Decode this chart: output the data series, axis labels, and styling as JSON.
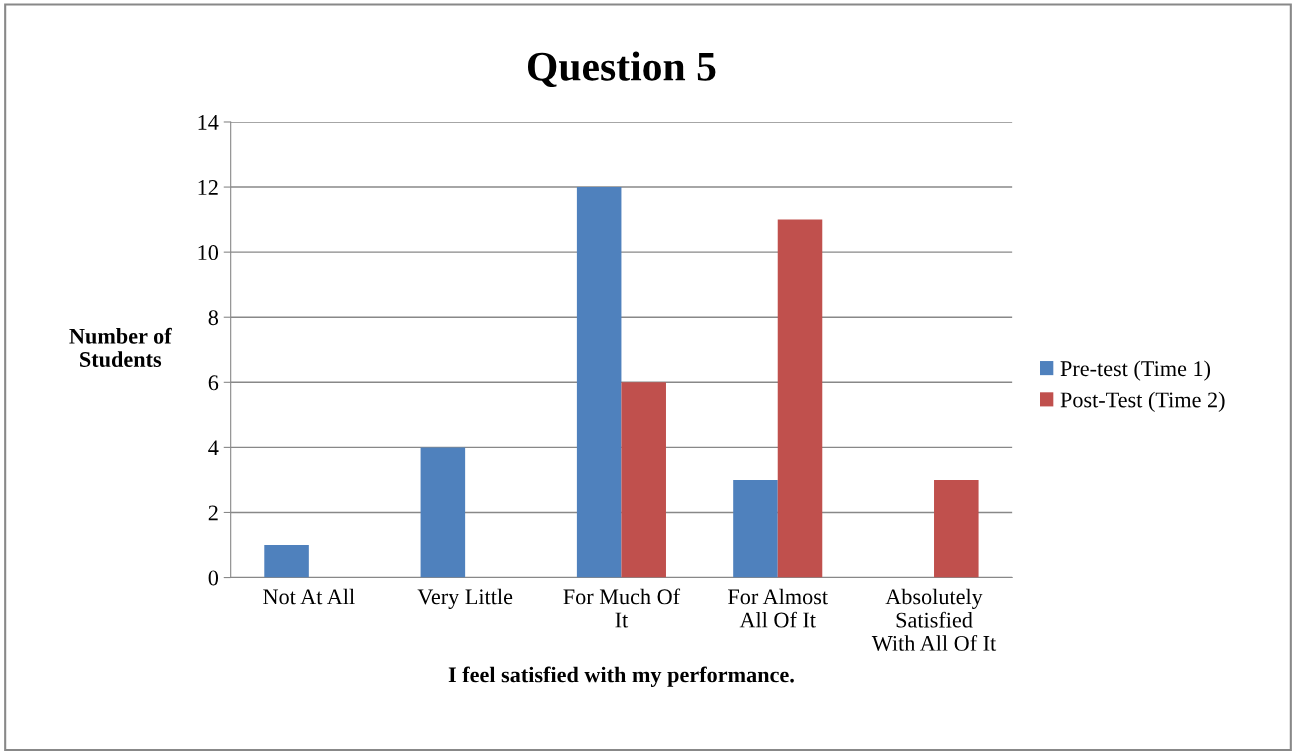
{
  "chart_data": {
    "type": "bar",
    "title": "Question 5",
    "xlabel": "I feel satisfied with my performance.",
    "ylabel": "Number of\nStudents",
    "categories": [
      "Not At All",
      "Very Little",
      "For Much Of\nIt",
      "For Almost\nAll Of It",
      "Absolutely\nSatisfied\nWith All Of It"
    ],
    "series": [
      {
        "name": "Pre-test (Time 1)",
        "color": "#4f81bd",
        "values": [
          1,
          4,
          12,
          3,
          0
        ]
      },
      {
        "name": "Post-Test (Time 2)",
        "color": "#c0504d",
        "values": [
          0,
          0,
          6,
          11,
          3
        ]
      }
    ],
    "ylim": [
      0,
      14
    ],
    "yticks": [
      0,
      2,
      4,
      6,
      8,
      10,
      12,
      14
    ],
    "grid": "y",
    "legend": "right"
  }
}
